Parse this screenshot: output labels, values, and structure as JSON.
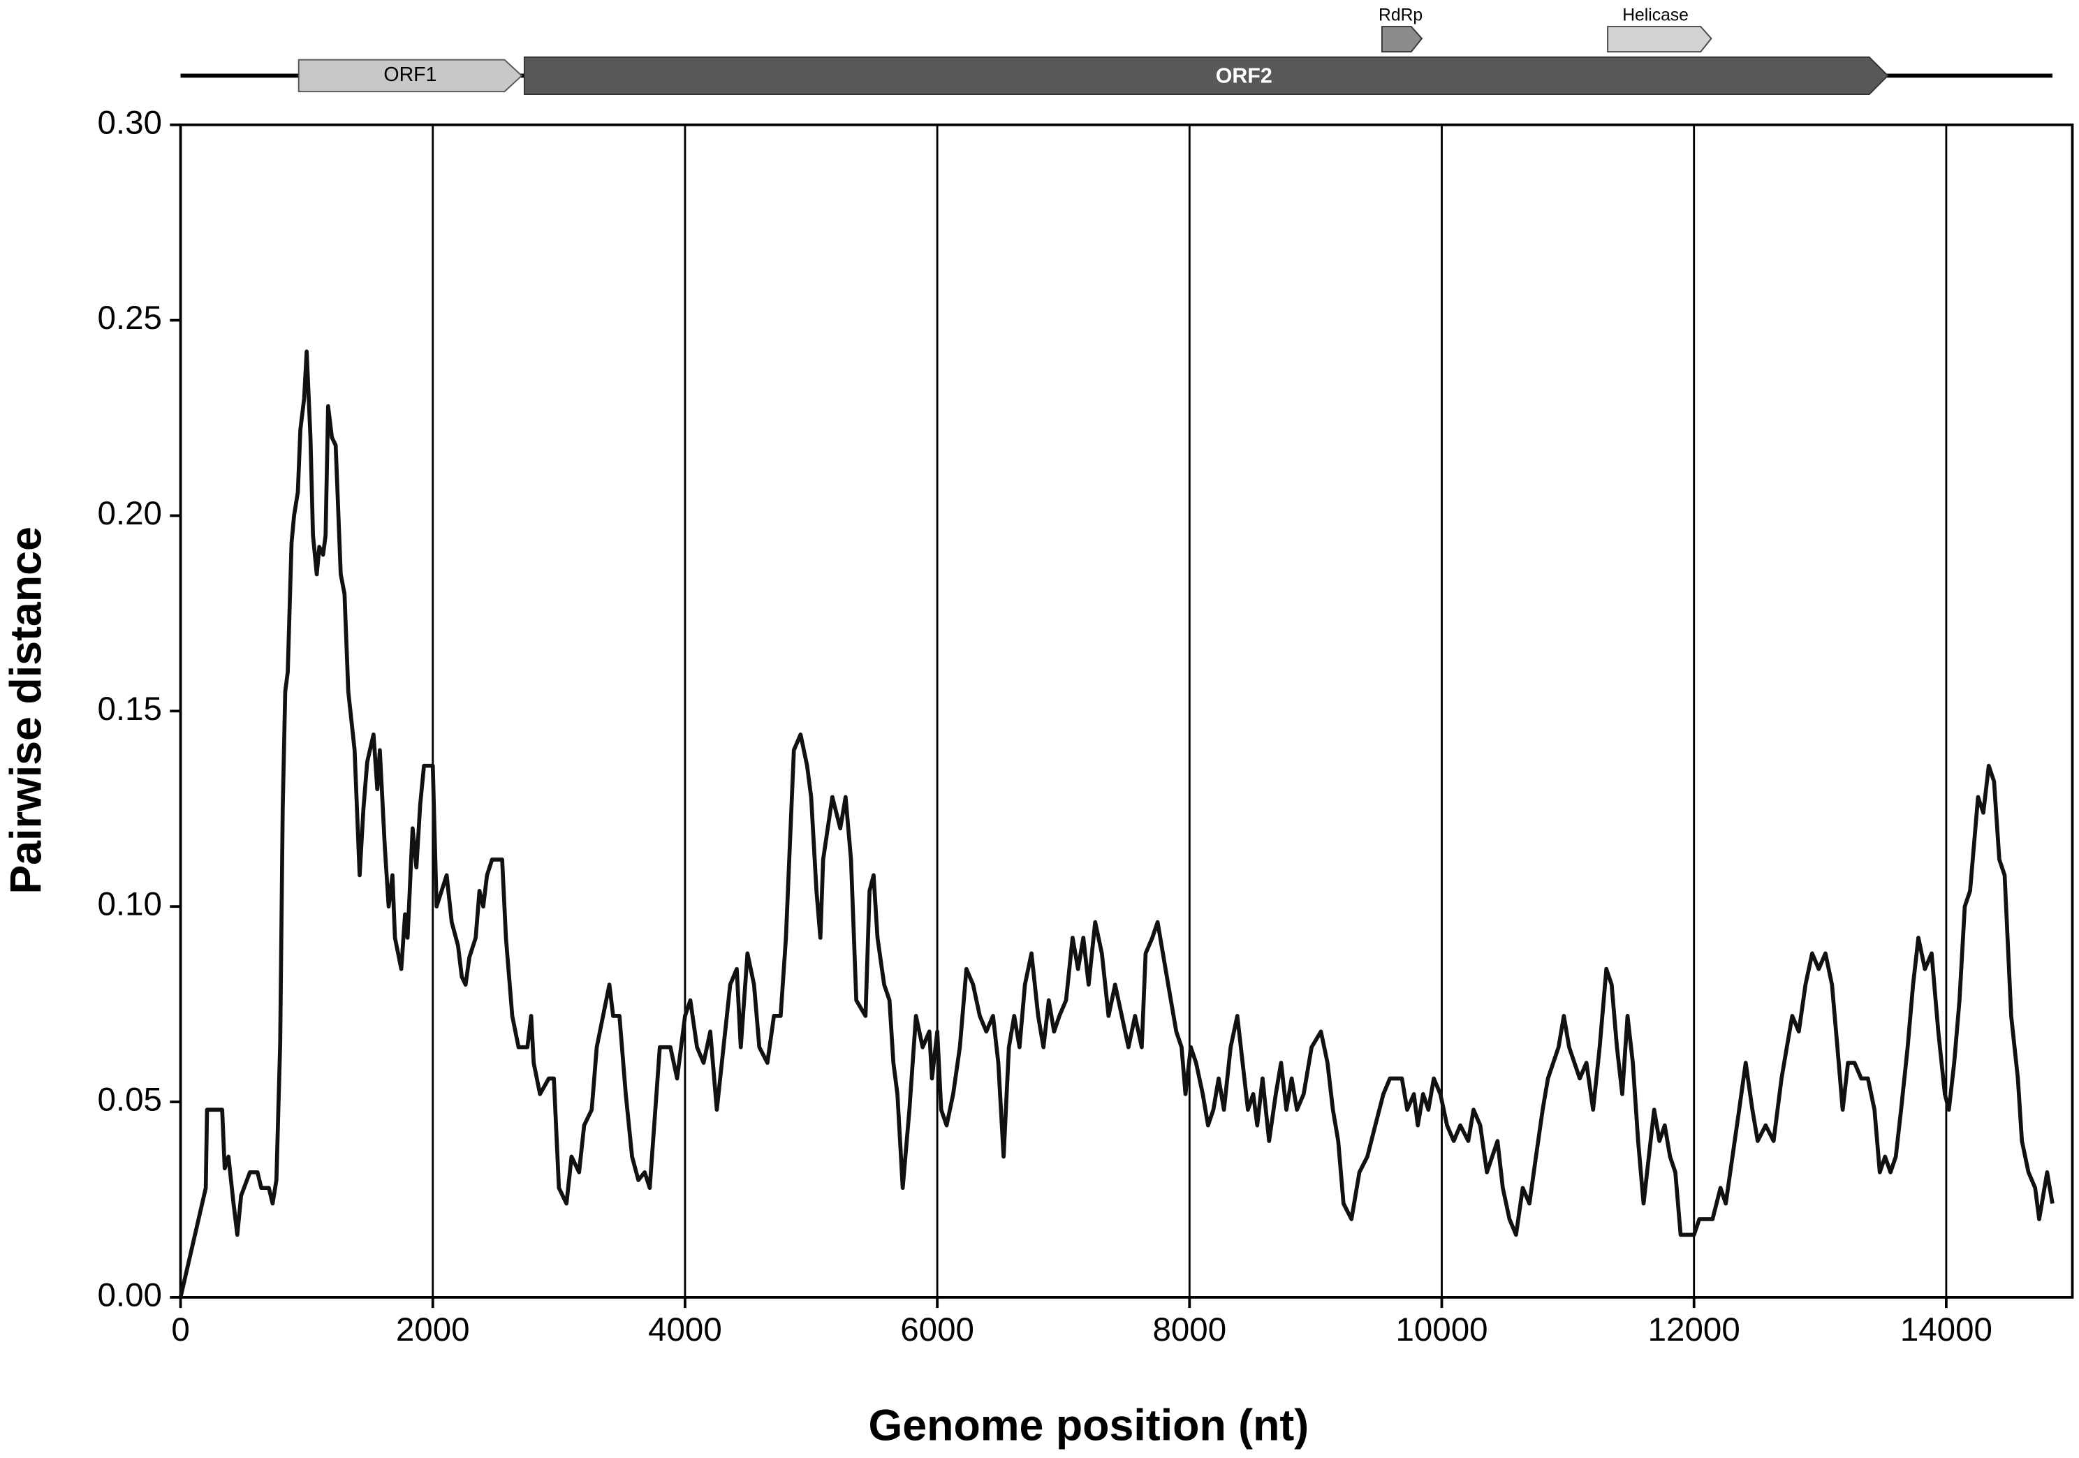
{
  "chart_data": {
    "type": "line",
    "annotations": [
      "ORF1",
      "ORF2",
      "RdRp",
      "Helicase"
    ],
    "x_label": "Genome position (nt)",
    "y_label": "Pairwise distance",
    "xlim": [
      0,
      15000
    ],
    "xticks": [
      0,
      2000,
      4000,
      6000,
      8000,
      10000,
      12000,
      14000
    ],
    "ylim": [
      0,
      0.3
    ],
    "yticks": [
      {
        "value": 0,
        "label": "0.00"
      },
      {
        "value": 0.05,
        "label": "0.05"
      },
      {
        "value": 0.1,
        "label": "0.10"
      },
      {
        "value": 0.15,
        "label": "0.15"
      },
      {
        "value": 0.2,
        "label": "0.20"
      },
      {
        "value": 0.25,
        "label": "0.25"
      },
      {
        "value": 0.3,
        "label": "0.30"
      }
    ],
    "grid": "x",
    "series": [
      {
        "color": "#111111",
        "x": [
          0,
          200,
          210,
          330,
          350,
          380,
          420,
          450,
          480,
          550,
          610,
          640,
          700,
          730,
          760,
          790,
          810,
          830,
          850,
          880,
          900,
          930,
          950,
          980,
          1000,
          1030,
          1050,
          1080,
          1100,
          1130,
          1150,
          1170,
          1200,
          1230,
          1270,
          1300,
          1330,
          1380,
          1420,
          1450,
          1480,
          1530,
          1560,
          1580,
          1620,
          1650,
          1680,
          1700,
          1750,
          1780,
          1800,
          1840,
          1870,
          1900,
          1930,
          2000,
          2030,
          2070,
          2110,
          2150,
          2200,
          2230,
          2260,
          2290,
          2340,
          2370,
          2400,
          2430,
          2470,
          2550,
          2580,
          2630,
          2680,
          2750,
          2780,
          2800,
          2850,
          2920,
          2960,
          3000,
          3060,
          3100,
          3160,
          3200,
          3260,
          3300,
          3350,
          3400,
          3430,
          3480,
          3530,
          3580,
          3630,
          3680,
          3720,
          3800,
          3884,
          3937,
          4000,
          4042,
          4095,
          4147,
          4200,
          4252,
          4305,
          4358,
          4410,
          4442,
          4495,
          4547,
          4589,
          4653,
          4705,
          4758,
          4800,
          4863,
          4916,
          4968,
          5000,
          5042,
          5073,
          5095,
          5168,
          5231,
          5273,
          5316,
          5358,
          5431,
          5463,
          5495,
          5526,
          5579,
          5621,
          5652,
          5684,
          5726,
          5779,
          5831,
          5884,
          5937,
          5958,
          6000,
          6031,
          6074,
          6126,
          6179,
          6231,
          6284,
          6337,
          6389,
          6442,
          6484,
          6526,
          6568,
          6610,
          6652,
          6695,
          6747,
          6800,
          6842,
          6884,
          6926,
          6968,
          7021,
          7073,
          7116,
          7158,
          7200,
          7252,
          7305,
          7358,
          7410,
          7463,
          7516,
          7568,
          7621,
          7652,
          7705,
          7747,
          7789,
          7831,
          7895,
          7937,
          7968,
          8010,
          8052,
          8105,
          8147,
          8189,
          8231,
          8273,
          8326,
          8379,
          8421,
          8463,
          8505,
          8537,
          8579,
          8631,
          8684,
          8726,
          8768,
          8810,
          8852,
          8905,
          8968,
          9042,
          9094,
          9137,
          9179,
          9221,
          9284,
          9347,
          9410,
          9473,
          9537,
          9589,
          9684,
          9726,
          9779,
          9810,
          9852,
          9894,
          9937,
          9989,
          10042,
          10095,
          10147,
          10210,
          10252,
          10305,
          10358,
          10400,
          10442,
          10484,
          10537,
          10589,
          10642,
          10695,
          10747,
          10800,
          10842,
          10884,
          10926,
          10968,
          11010,
          11052,
          11094,
          11147,
          11200,
          11252,
          11305,
          11347,
          11389,
          11431,
          11473,
          11515,
          11557,
          11600,
          11642,
          11684,
          11726,
          11768,
          11810,
          11852,
          11894,
          12000,
          12042,
          12147,
          12210,
          12252,
          12305,
          12358,
          12410,
          12463,
          12505,
          12568,
          12631,
          12694,
          12736,
          12779,
          12831,
          12884,
          12937,
          12989,
          13042,
          13094,
          13137,
          13179,
          13221,
          13273,
          13326,
          13379,
          13431,
          13473,
          13515,
          13558,
          13600,
          13642,
          13694,
          13737,
          13779,
          13831,
          13884,
          13937,
          13989,
          14021,
          14063,
          14105,
          14147,
          14189,
          14252,
          14294,
          14337,
          14379,
          14421,
          14463,
          14515,
          14568,
          14600,
          14652,
          14705,
          14737,
          14779,
          14800,
          14842
        ],
        "values": [
          0,
          0.028,
          0.048,
          0.048,
          0.033,
          0.036,
          0.024,
          0.016,
          0.026,
          0.032,
          0.032,
          0.028,
          0.028,
          0.024,
          0.03,
          0.065,
          0.125,
          0.155,
          0.16,
          0.193,
          0.2,
          0.206,
          0.222,
          0.23,
          0.242,
          0.22,
          0.195,
          0.185,
          0.192,
          0.19,
          0.195,
          0.228,
          0.22,
          0.218,
          0.185,
          0.18,
          0.155,
          0.14,
          0.108,
          0.125,
          0.137,
          0.144,
          0.13,
          0.14,
          0.115,
          0.1,
          0.108,
          0.092,
          0.084,
          0.098,
          0.092,
          0.12,
          0.11,
          0.126,
          0.136,
          0.136,
          0.1,
          0.104,
          0.108,
          0.096,
          0.09,
          0.082,
          0.08,
          0.087,
          0.092,
          0.104,
          0.1,
          0.108,
          0.112,
          0.112,
          0.092,
          0.072,
          0.064,
          0.064,
          0.072,
          0.06,
          0.052,
          0.056,
          0.056,
          0.028,
          0.024,
          0.036,
          0.032,
          0.044,
          0.048,
          0.064,
          0.072,
          0.08,
          0.072,
          0.072,
          0.052,
          0.036,
          0.03,
          0.032,
          0.028,
          0.064,
          0.064,
          0.056,
          0.072,
          0.076,
          0.064,
          0.06,
          0.068,
          0.048,
          0.064,
          0.08,
          0.084,
          0.064,
          0.088,
          0.08,
          0.064,
          0.06,
          0.072,
          0.072,
          0.092,
          0.14,
          0.144,
          0.136,
          0.128,
          0.104,
          0.092,
          0.112,
          0.128,
          0.12,
          0.128,
          0.112,
          0.076,
          0.072,
          0.104,
          0.108,
          0.092,
          0.08,
          0.076,
          0.06,
          0.052,
          0.028,
          0.048,
          0.072,
          0.064,
          0.068,
          0.056,
          0.068,
          0.048,
          0.044,
          0.052,
          0.064,
          0.084,
          0.08,
          0.072,
          0.068,
          0.072,
          0.06,
          0.036,
          0.064,
          0.072,
          0.064,
          0.08,
          0.088,
          0.072,
          0.064,
          0.076,
          0.068,
          0.072,
          0.076,
          0.092,
          0.084,
          0.092,
          0.08,
          0.096,
          0.088,
          0.072,
          0.08,
          0.072,
          0.064,
          0.072,
          0.064,
          0.088,
          0.092,
          0.096,
          0.088,
          0.08,
          0.068,
          0.064,
          0.052,
          0.064,
          0.06,
          0.052,
          0.044,
          0.048,
          0.056,
          0.048,
          0.064,
          0.072,
          0.06,
          0.048,
          0.052,
          0.044,
          0.056,
          0.04,
          0.052,
          0.06,
          0.048,
          0.056,
          0.048,
          0.052,
          0.064,
          0.068,
          0.06,
          0.048,
          0.04,
          0.024,
          0.02,
          0.032,
          0.036,
          0.044,
          0.052,
          0.056,
          0.056,
          0.048,
          0.052,
          0.044,
          0.052,
          0.048,
          0.056,
          0.052,
          0.044,
          0.04,
          0.044,
          0.04,
          0.048,
          0.044,
          0.032,
          0.036,
          0.04,
          0.028,
          0.02,
          0.016,
          0.028,
          0.024,
          0.036,
          0.048,
          0.056,
          0.06,
          0.064,
          0.072,
          0.064,
          0.06,
          0.056,
          0.06,
          0.048,
          0.064,
          0.084,
          0.08,
          0.064,
          0.052,
          0.072,
          0.06,
          0.04,
          0.024,
          0.036,
          0.048,
          0.04,
          0.044,
          0.036,
          0.032,
          0.016,
          0.016,
          0.02,
          0.02,
          0.028,
          0.024,
          0.036,
          0.048,
          0.06,
          0.048,
          0.04,
          0.044,
          0.04,
          0.056,
          0.064,
          0.072,
          0.068,
          0.08,
          0.088,
          0.084,
          0.088,
          0.08,
          0.064,
          0.048,
          0.06,
          0.06,
          0.056,
          0.056,
          0.048,
          0.032,
          0.036,
          0.032,
          0.036,
          0.048,
          0.064,
          0.08,
          0.092,
          0.084,
          0.088,
          0.068,
          0.052,
          0.048,
          0.06,
          0.076,
          0.1,
          0.104,
          0.128,
          0.124,
          0.136,
          0.132,
          0.112,
          0.108,
          0.072,
          0.056,
          0.04,
          0.032,
          0.028,
          0.02,
          0.028,
          0.032,
          0.024
        ]
      }
    ]
  }
}
